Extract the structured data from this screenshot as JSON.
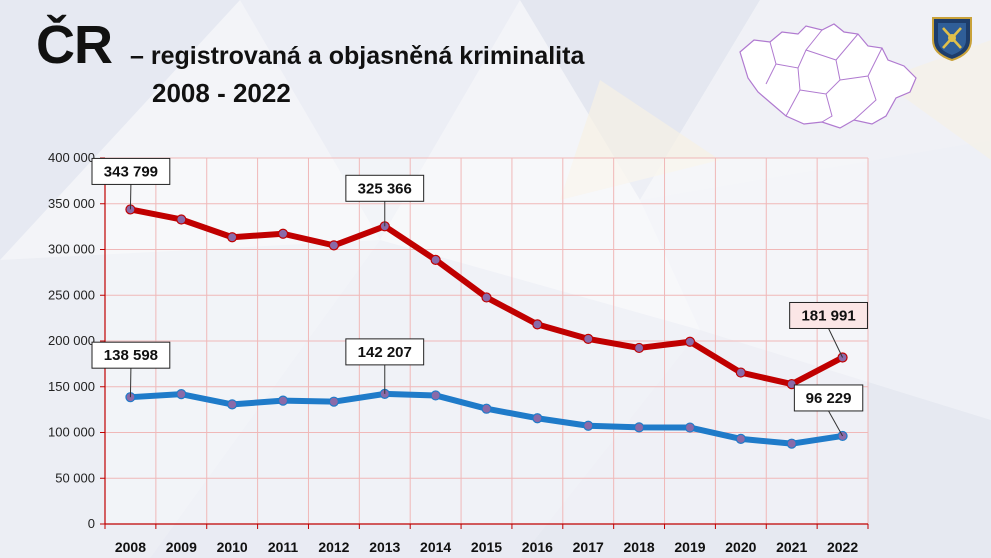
{
  "header": {
    "title_main": "ČR",
    "title_sub": "– registrovaná a objasněná kriminalita",
    "title_years": "2008 - 2022"
  },
  "icons": [
    "czech-map-icon",
    "police-emblem-icon"
  ],
  "chart_data": {
    "type": "line",
    "categories": [
      "2008",
      "2009",
      "2010",
      "2011",
      "2012",
      "2013",
      "2014",
      "2015",
      "2016",
      "2017",
      "2018",
      "2019",
      "2020",
      "2021",
      "2022"
    ],
    "ylim": [
      0,
      400000
    ],
    "yticks": [
      0,
      50000,
      100000,
      150000,
      200000,
      250000,
      300000,
      350000,
      400000
    ],
    "ytick_labels": [
      "0",
      "50 000",
      "100 000",
      "150 000",
      "200 000",
      "250 000",
      "300 000",
      "350 000",
      "400 000"
    ],
    "grid": true,
    "series": [
      {
        "color": "#c00000",
        "values": [
          343799,
          332800,
          313400,
          317200,
          304500,
          325366,
          288700,
          247600,
          218200,
          202300,
          192400,
          199200,
          165500,
          152900,
          181991
        ]
      },
      {
        "color": "#1f7bc9",
        "values": [
          138598,
          141900,
          130700,
          134800,
          133700,
          142207,
          140500,
          126000,
          115600,
          107400,
          105600,
          105400,
          93000,
          87800,
          96229
        ]
      }
    ],
    "annotations": [
      {
        "series": 0,
        "index": 0,
        "label": "343 799"
      },
      {
        "series": 0,
        "index": 5,
        "label": "325 366"
      },
      {
        "series": 0,
        "index": 14,
        "label": "181 991"
      },
      {
        "series": 1,
        "index": 0,
        "label": "138 598"
      },
      {
        "series": 1,
        "index": 5,
        "label": "142 207"
      },
      {
        "series": 1,
        "index": 14,
        "label": "96 229"
      }
    ]
  }
}
